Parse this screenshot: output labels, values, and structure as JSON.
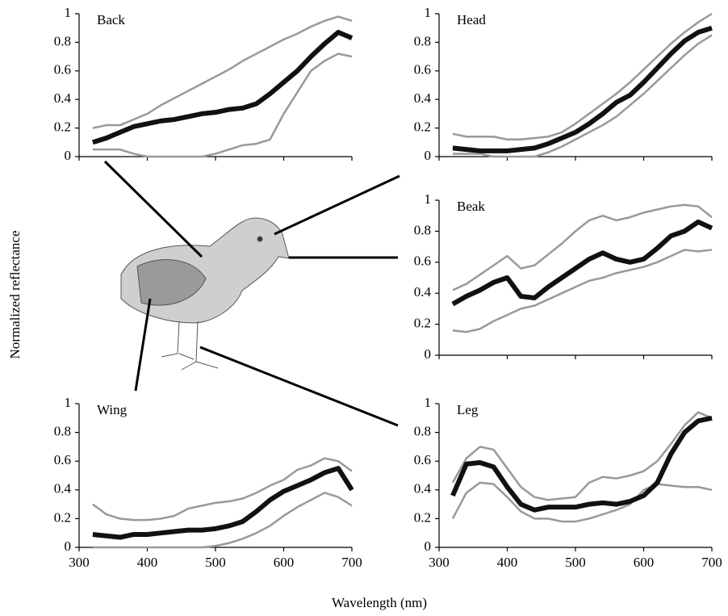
{
  "xlabel": "Wavelength (nm)",
  "ylabel": "Normalized reflectance",
  "chart_data": [
    {
      "type": "line",
      "title": "Back",
      "x": [
        320,
        340,
        360,
        380,
        400,
        420,
        440,
        460,
        480,
        500,
        520,
        540,
        560,
        580,
        600,
        620,
        640,
        660,
        680,
        700
      ],
      "series": [
        {
          "color": "#999999",
          "values": [
            0.2,
            0.22,
            0.22,
            0.26,
            0.3,
            0.36,
            0.41,
            0.46,
            0.51,
            0.56,
            0.61,
            0.67,
            0.72,
            0.77,
            0.82,
            0.86,
            0.91,
            0.95,
            0.98,
            0.95
          ]
        },
        {
          "color": "#999999",
          "values": [
            0.05,
            0.05,
            0.05,
            0.02,
            0,
            0,
            0,
            0,
            0,
            0.02,
            0.05,
            0.08,
            0.09,
            0.12,
            0.3,
            0.45,
            0.6,
            0.67,
            0.72,
            0.7
          ]
        },
        {
          "color": "#111111",
          "values": [
            0.1,
            0.13,
            0.17,
            0.21,
            0.23,
            0.25,
            0.26,
            0.28,
            0.3,
            0.31,
            0.33,
            0.34,
            0.37,
            0.44,
            0.52,
            0.6,
            0.7,
            0.79,
            0.87,
            0.83
          ]
        }
      ],
      "xlim": [
        300,
        700
      ],
      "xticks": [
        300,
        400,
        500,
        600,
        700
      ],
      "xticklabels": false,
      "ylim": [
        0,
        1
      ],
      "yticks": [
        0,
        0.2,
        0.4,
        0.6,
        0.8,
        1
      ]
    },
    {
      "type": "line",
      "title": "Head",
      "x": [
        320,
        340,
        360,
        380,
        400,
        420,
        440,
        460,
        480,
        500,
        520,
        540,
        560,
        580,
        600,
        620,
        640,
        660,
        680,
        700
      ],
      "series": [
        {
          "color": "#999999",
          "values": [
            0.16,
            0.14,
            0.14,
            0.14,
            0.12,
            0.12,
            0.13,
            0.14,
            0.17,
            0.23,
            0.3,
            0.37,
            0.44,
            0.52,
            0.61,
            0.7,
            0.79,
            0.87,
            0.94,
            1.0
          ]
        },
        {
          "color": "#999999",
          "values": [
            0.02,
            0.02,
            0.02,
            0,
            0,
            0,
            0,
            0.03,
            0.07,
            0.12,
            0.17,
            0.22,
            0.28,
            0.36,
            0.44,
            0.53,
            0.62,
            0.71,
            0.79,
            0.85
          ]
        },
        {
          "color": "#111111",
          "values": [
            0.06,
            0.05,
            0.04,
            0.04,
            0.04,
            0.05,
            0.06,
            0.09,
            0.13,
            0.17,
            0.23,
            0.3,
            0.38,
            0.43,
            0.52,
            0.62,
            0.72,
            0.81,
            0.87,
            0.9
          ]
        }
      ],
      "xlim": [
        300,
        700
      ],
      "xticks": [
        300,
        400,
        500,
        600,
        700
      ],
      "xticklabels": false,
      "ylim": [
        0,
        1
      ],
      "yticks": [
        0,
        0.2,
        0.4,
        0.6,
        0.8,
        1
      ]
    },
    {
      "type": "line",
      "title": "Beak",
      "x": [
        320,
        340,
        360,
        380,
        400,
        420,
        440,
        460,
        480,
        500,
        520,
        540,
        560,
        580,
        600,
        620,
        640,
        660,
        680,
        700
      ],
      "series": [
        {
          "color": "#999999",
          "values": [
            0.42,
            0.46,
            0.52,
            0.58,
            0.64,
            0.56,
            0.58,
            0.65,
            0.72,
            0.8,
            0.87,
            0.9,
            0.87,
            0.89,
            0.92,
            0.94,
            0.96,
            0.97,
            0.96,
            0.89
          ]
        },
        {
          "color": "#999999",
          "values": [
            0.16,
            0.15,
            0.17,
            0.22,
            0.26,
            0.3,
            0.32,
            0.36,
            0.4,
            0.44,
            0.48,
            0.5,
            0.53,
            0.55,
            0.57,
            0.6,
            0.64,
            0.68,
            0.67,
            0.68
          ]
        },
        {
          "color": "#111111",
          "values": [
            0.33,
            0.38,
            0.42,
            0.47,
            0.5,
            0.38,
            0.37,
            0.44,
            0.5,
            0.56,
            0.62,
            0.66,
            0.62,
            0.6,
            0.62,
            0.69,
            0.77,
            0.8,
            0.86,
            0.82
          ]
        }
      ],
      "xlim": [
        300,
        700
      ],
      "xticks": [
        300,
        400,
        500,
        600,
        700
      ],
      "xticklabels": false,
      "ylim": [
        0,
        1
      ],
      "yticks": [
        0,
        0.2,
        0.4,
        0.6,
        0.8,
        1
      ]
    },
    {
      "type": "line",
      "title": "Wing",
      "x": [
        320,
        340,
        360,
        380,
        400,
        420,
        440,
        460,
        480,
        500,
        520,
        540,
        560,
        580,
        600,
        620,
        640,
        660,
        680,
        700
      ],
      "series": [
        {
          "color": "#999999",
          "values": [
            0.3,
            0.23,
            0.2,
            0.19,
            0.19,
            0.2,
            0.22,
            0.27,
            0.29,
            0.31,
            0.32,
            0.34,
            0.38,
            0.43,
            0.47,
            0.54,
            0.57,
            0.62,
            0.6,
            0.53
          ]
        },
        {
          "color": "#999999",
          "values": [
            0,
            0,
            0,
            0,
            0,
            0,
            0,
            0,
            0,
            0.01,
            0.03,
            0.06,
            0.1,
            0.15,
            0.22,
            0.28,
            0.33,
            0.38,
            0.35,
            0.29
          ]
        },
        {
          "color": "#111111",
          "values": [
            0.09,
            0.08,
            0.07,
            0.09,
            0.09,
            0.1,
            0.11,
            0.12,
            0.12,
            0.13,
            0.15,
            0.18,
            0.25,
            0.33,
            0.39,
            0.43,
            0.47,
            0.52,
            0.55,
            0.4
          ]
        }
      ],
      "xlim": [
        300,
        700
      ],
      "xticks": [
        300,
        400,
        500,
        600,
        700
      ],
      "xticklabels": true,
      "ylim": [
        0,
        1
      ],
      "yticks": [
        0,
        0.2,
        0.4,
        0.6,
        0.8,
        1
      ]
    },
    {
      "type": "line",
      "title": "Leg",
      "x": [
        320,
        340,
        360,
        380,
        400,
        420,
        440,
        460,
        480,
        500,
        520,
        540,
        560,
        580,
        600,
        620,
        640,
        660,
        680,
        700
      ],
      "series": [
        {
          "color": "#999999",
          "values": [
            0.45,
            0.62,
            0.7,
            0.68,
            0.55,
            0.42,
            0.35,
            0.33,
            0.34,
            0.35,
            0.45,
            0.49,
            0.48,
            0.5,
            0.53,
            0.6,
            0.72,
            0.85,
            0.94,
            0.9
          ]
        },
        {
          "color": "#999999",
          "values": [
            0.2,
            0.38,
            0.45,
            0.44,
            0.35,
            0.25,
            0.2,
            0.2,
            0.18,
            0.18,
            0.2,
            0.23,
            0.26,
            0.3,
            0.4,
            0.44,
            0.43,
            0.42,
            0.42,
            0.4
          ]
        },
        {
          "color": "#111111",
          "values": [
            0.36,
            0.58,
            0.59,
            0.56,
            0.42,
            0.3,
            0.26,
            0.28,
            0.28,
            0.28,
            0.3,
            0.31,
            0.3,
            0.32,
            0.36,
            0.45,
            0.65,
            0.8,
            0.88,
            0.9
          ]
        }
      ],
      "xlim": [
        300,
        700
      ],
      "xticks": [
        300,
        400,
        500,
        600,
        700
      ],
      "xticklabels": true,
      "ylim": [
        0,
        1
      ],
      "yticks": [
        0,
        0.2,
        0.4,
        0.6,
        0.8,
        1
      ]
    }
  ]
}
